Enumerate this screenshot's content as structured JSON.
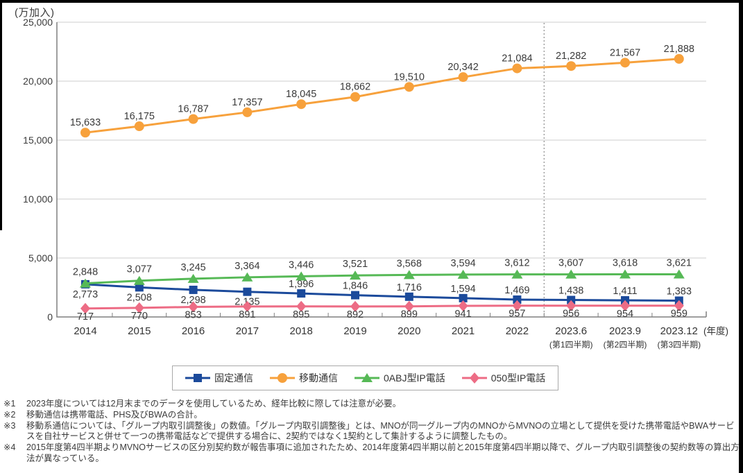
{
  "chart_data": {
    "type": "line",
    "unit_label": "(万加入)",
    "x_axis_suffix": "(年度)",
    "categories": [
      "2014",
      "2015",
      "2016",
      "2017",
      "2018",
      "2019",
      "2020",
      "2021",
      "2022",
      "2023.6",
      "2023.9",
      "2023.12"
    ],
    "category_sublabels": {
      "2023.6": "(第1四半期)",
      "2023.9": "(第2四半期)",
      "2023.12": "(第3四半期)"
    },
    "ylim": [
      0,
      25000
    ],
    "ytick_interval": 5000,
    "yticks": [
      "0",
      "5,000",
      "10,000",
      "15,000",
      "20,000",
      "25,000"
    ],
    "grid": true,
    "forecast_divider_between": [
      "2022",
      "2023.6"
    ],
    "legend_position": "bottom",
    "axis_color": "#7f7f7f",
    "grid_color": "#cccccc",
    "divider_color": "#8c8c8c",
    "series": [
      {
        "name": "固定通信",
        "marker": "square",
        "color": "#1b4a9b",
        "values": [
          2773,
          2508,
          2298,
          2135,
          1996,
          1846,
          1716,
          1594,
          1469,
          1438,
          1411,
          1383
        ]
      },
      {
        "name": "移動通信",
        "marker": "circle",
        "color": "#f7a13c",
        "values": [
          15633,
          16175,
          16787,
          17357,
          18045,
          18662,
          19510,
          20342,
          21084,
          21282,
          21567,
          21888
        ]
      },
      {
        "name": "0ABJ型IP電話",
        "marker": "triangle",
        "color": "#56b956",
        "values": [
          2848,
          3077,
          3245,
          3364,
          3446,
          3521,
          3568,
          3594,
          3612,
          3607,
          3618,
          3621
        ]
      },
      {
        "name": "050型IP電話",
        "marker": "diamond",
        "color": "#ed6c85",
        "values": [
          717,
          770,
          853,
          891,
          895,
          892,
          899,
          941,
          957,
          956,
          954,
          959
        ]
      }
    ]
  },
  "footnotes": [
    {
      "marker": "※1",
      "text": "2023年度については12月末までのデータを使用しているため、経年比較に際しては注意が必要。"
    },
    {
      "marker": "※2",
      "text": "移動通信は携帯電話、PHS及びBWAの合計。"
    },
    {
      "marker": "※3",
      "text": "移動系通信については、「グループ内取引調整後」の数値。「グループ内取引調整後」とは、MNOが同一グループ内のMNOからMVNOの立場として提供を受けた携帯電話やBWAサービスを自社サービスと併せて一つの携帯電話などで提供する場合に、2契約ではなく1契約として集計するように調整したもの。"
    },
    {
      "marker": "※4",
      "text": "2015年度第4四半期よりMVNOサービスの区分別契約数が報告事項に追加されたため、2014年度第4四半期以前と2015年度第4四半期以降で、グループ内取引調整後の契約数等の算出方法が異なっている。"
    }
  ]
}
